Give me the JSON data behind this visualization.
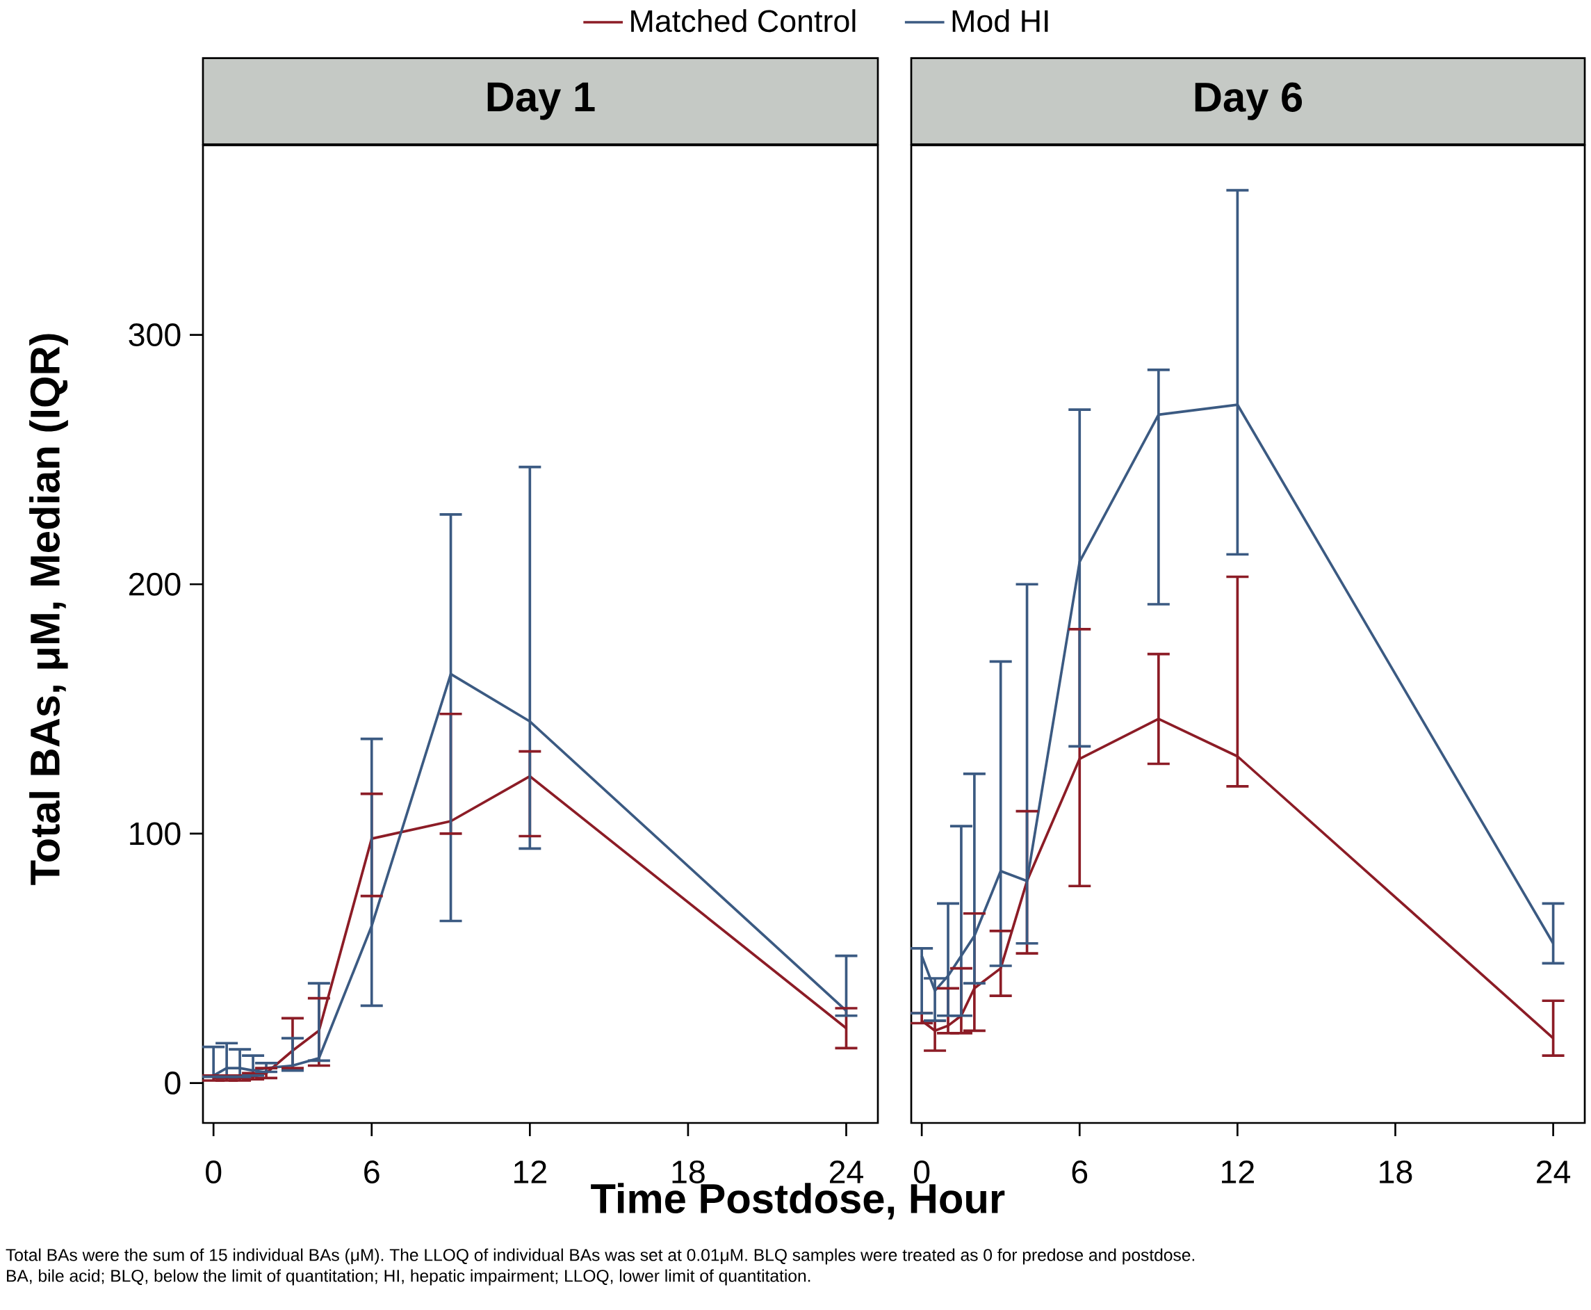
{
  "chart_data": [
    {
      "type": "line",
      "title": "Day 1",
      "xlabel": "Time Postdose, Hour",
      "ylabel": "Total BAs, μM, Median (IQR)",
      "x": [
        0,
        0.5,
        1,
        1.5,
        2,
        3,
        4,
        6,
        9,
        12,
        24
      ],
      "xlim": [
        -0.4,
        25.2
      ],
      "ylim": [
        -16,
        376
      ],
      "xticks": [
        0,
        6,
        12,
        18,
        24
      ],
      "yticks": [
        0,
        100,
        200,
        300
      ],
      "legend": "top",
      "series": [
        {
          "name": "Matched Control",
          "color": "#8c1c26",
          "values": [
            2,
            2,
            2,
            2.5,
            4,
            13,
            21,
            98,
            105,
            123,
            22
          ],
          "errors": [
            [
              1,
              3
            ],
            [
              1,
              3
            ],
            [
              1,
              3
            ],
            [
              1.5,
              4
            ],
            [
              2,
              6
            ],
            [
              6,
              26
            ],
            [
              7,
              34
            ],
            [
              75,
              116
            ],
            [
              100,
              148
            ],
            [
              99,
              133
            ],
            [
              14,
              30
            ]
          ]
        },
        {
          "name": "Mod HI",
          "color": "#3b5a82",
          "values": [
            3,
            6,
            6,
            5,
            6,
            7,
            10,
            63,
            164,
            145,
            29
          ],
          "errors": [
            [
              2.5,
              14.5
            ],
            [
              2.5,
              16
            ],
            [
              2.5,
              13.5
            ],
            [
              3,
              11
            ],
            [
              4.5,
              8
            ],
            [
              5,
              18
            ],
            [
              9,
              40
            ],
            [
              31,
              138
            ],
            [
              65,
              228
            ],
            [
              94,
              247
            ],
            [
              27,
              51
            ]
          ]
        }
      ],
      "annotations": [
        "Total BAs were the sum of 15 individual BAs (μM). The LLOQ of individual BAs was set at 0.01μM. BLQ samples were treated as 0 for predose and postdose.",
        "BA, bile acid; BLQ, below the limit of quantitation; HI, hepatic impairment; LLOQ, lower limit of quantitation."
      ]
    },
    {
      "type": "line",
      "title": "Day 6",
      "x": [
        0,
        0.5,
        1,
        1.5,
        2,
        3,
        4,
        6,
        9,
        12,
        24
      ],
      "xlim": [
        -0.4,
        25.2
      ],
      "ylim": [
        -16,
        376
      ],
      "xticks": [
        0,
        6,
        12,
        18,
        24
      ],
      "tick_labels": "x",
      "series": [
        {
          "color": "#8c1c26",
          "values": [
            25,
            21,
            23,
            27,
            38,
            46,
            81,
            130,
            146,
            131,
            18
          ],
          "errors": [
            [
              24,
              28
            ],
            [
              13,
              25
            ],
            [
              20,
              38
            ],
            [
              20,
              46
            ],
            [
              21,
              68
            ],
            [
              35,
              61
            ],
            [
              52,
              109
            ],
            [
              79,
              182
            ],
            [
              128,
              172
            ],
            [
              119,
              203
            ],
            [
              11,
              33
            ]
          ]
        },
        {
          "color": "#3b5a82",
          "values": [
            51,
            37,
            43,
            51,
            59,
            85,
            81,
            209,
            268,
            272,
            56
          ],
          "errors": [
            [
              28,
              54
            ],
            [
              25,
              42
            ],
            [
              27,
              72
            ],
            [
              27,
              103
            ],
            [
              40,
              124
            ],
            [
              47,
              169
            ],
            [
              56,
              200
            ],
            [
              135,
              270
            ],
            [
              192,
              286
            ],
            [
              212,
              358
            ],
            [
              48,
              72
            ]
          ]
        }
      ]
    }
  ]
}
